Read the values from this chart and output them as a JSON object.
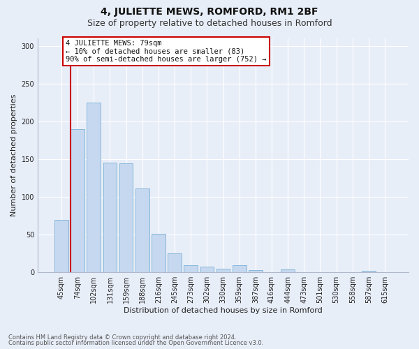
{
  "title": "4, JULIETTE MEWS, ROMFORD, RM1 2BF",
  "subtitle": "Size of property relative to detached houses in Romford",
  "xlabel": "Distribution of detached houses by size in Romford",
  "ylabel": "Number of detached properties",
  "footnote1": "Contains HM Land Registry data © Crown copyright and database right 2024.",
  "footnote2": "Contains public sector information licensed under the Open Government Licence v3.0.",
  "annotation_line1": "4 JULIETTE MEWS: 79sqm",
  "annotation_line2": "← 10% of detached houses are smaller (83)",
  "annotation_line3": "90% of semi-detached houses are larger (752) →",
  "bar_labels": [
    "45sqm",
    "74sqm",
    "102sqm",
    "131sqm",
    "159sqm",
    "188sqm",
    "216sqm",
    "245sqm",
    "273sqm",
    "302sqm",
    "330sqm",
    "359sqm",
    "387sqm",
    "416sqm",
    "444sqm",
    "473sqm",
    "501sqm",
    "530sqm",
    "558sqm",
    "587sqm",
    "615sqm"
  ],
  "bar_values": [
    70,
    190,
    225,
    145,
    144,
    111,
    51,
    25,
    9,
    8,
    5,
    9,
    3,
    0,
    4,
    0,
    0,
    0,
    0,
    2,
    0
  ],
  "bar_color": "#c5d8ef",
  "bar_edgecolor": "#7ab0d4",
  "red_line_color": "#cc0000",
  "ylim_max": 310,
  "yticks": [
    0,
    50,
    100,
    150,
    200,
    250,
    300
  ],
  "bg_color": "#e8eef8",
  "grid_color": "#ffffff",
  "ann_facecolor": "#ffffff",
  "ann_edgecolor": "#cc0000",
  "title_fontsize": 10,
  "subtitle_fontsize": 9,
  "tick_fontsize": 7,
  "ann_fontsize": 7.5,
  "ylabel_fontsize": 8,
  "xlabel_fontsize": 8,
  "footnote_fontsize": 6
}
